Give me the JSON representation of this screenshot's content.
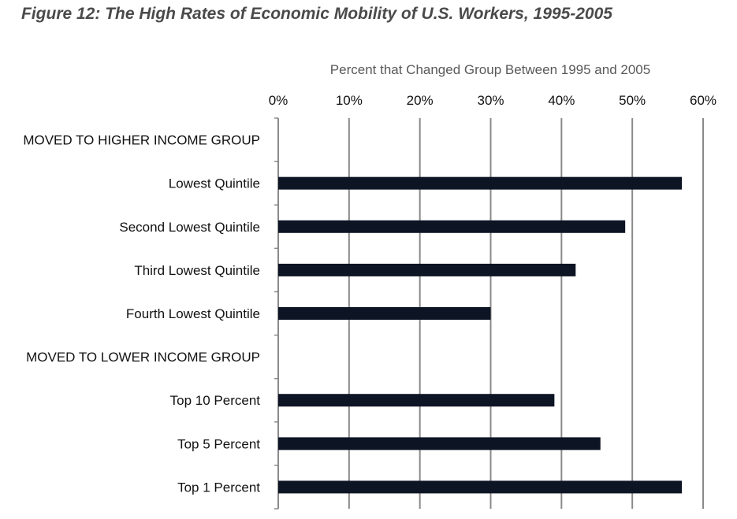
{
  "figure_title": "Figure 12: The High Rates of Economic Mobility of U.S. Workers, 1995-2005",
  "colors": {
    "bar": "#0d1423",
    "grid": "#8a8a8a",
    "axis_title": "#595959",
    "label": "#111111",
    "title": "#4a4a4a"
  },
  "chart_data": {
    "type": "bar",
    "orientation": "horizontal",
    "title": "Figure 12: The High Rates of Economic Mobility of U.S. Workers, 1995-2005",
    "xlabel": "Percent that Changed Group Between 1995 and 2005",
    "ylabel": "",
    "xlim": [
      0,
      60
    ],
    "x_axis_position": "top",
    "grid": true,
    "legend": "none",
    "tick_labels": [
      "0%",
      "10%",
      "20%",
      "30%",
      "40%",
      "50%",
      "60%"
    ],
    "categories": [
      "MOVED TO HIGHER INCOME GROUP",
      "Lowest Quintile",
      "Second Lowest Quintile",
      "Third Lowest Quintile",
      "Fourth Lowest Quintile",
      "MOVED TO LOWER INCOME GROUP",
      "Top 10 Percent",
      "Top 5 Percent",
      "Top 1 Percent"
    ],
    "values": [
      null,
      57,
      49,
      42,
      30,
      null,
      39,
      45.5,
      57
    ]
  }
}
